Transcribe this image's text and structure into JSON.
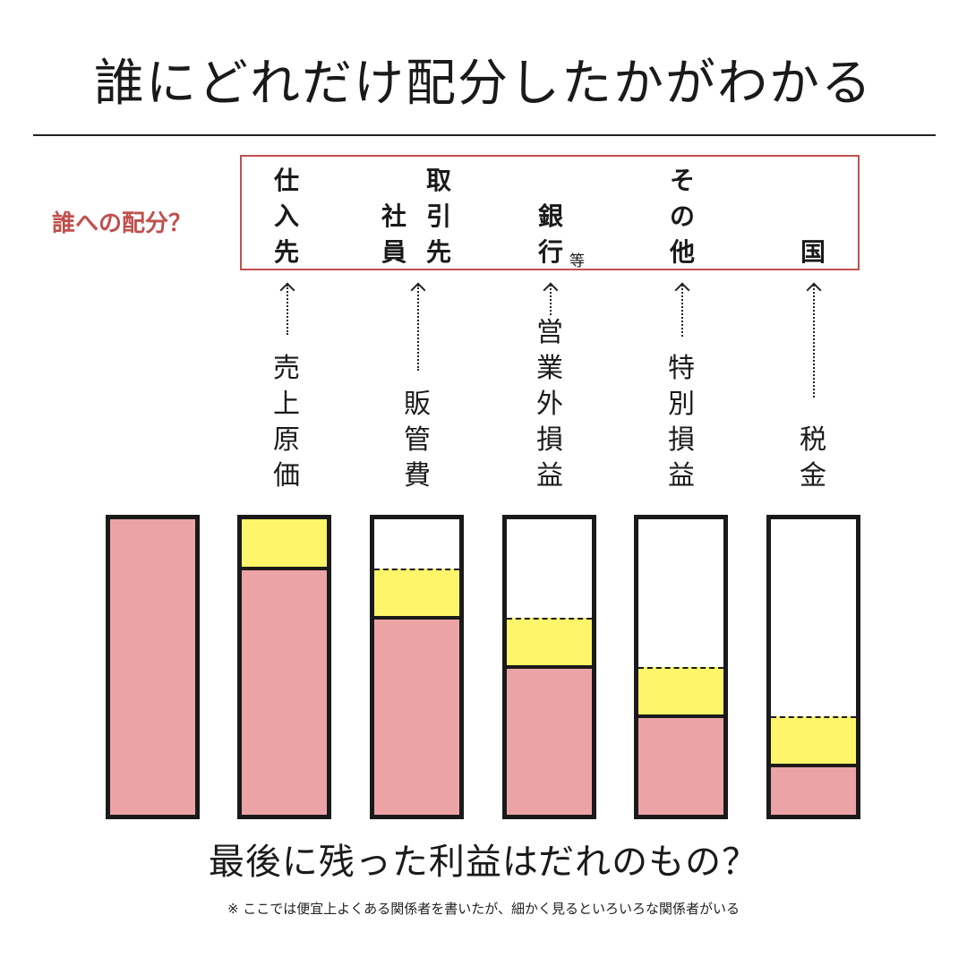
{
  "title": "誰にどれだけ配分したかがわかる",
  "allocation_label": "誰への配分？",
  "recipients": [
    {
      "lines": [
        "仕",
        "入",
        "先"
      ],
      "suffix": ""
    },
    {
      "lines": [
        "社",
        "員"
      ],
      "suffix": ""
    },
    {
      "lines": [
        "取",
        "引",
        "先"
      ],
      "suffix": ""
    },
    {
      "lines": [
        "銀",
        "行"
      ],
      "suffix": "等"
    },
    {
      "lines": [
        "そ",
        "の",
        "他"
      ],
      "suffix": ""
    },
    {
      "lines": [
        "国"
      ],
      "suffix": ""
    }
  ],
  "categories": [
    {
      "lines": [
        "売",
        "上",
        "原",
        "価"
      ]
    },
    {
      "lines": [
        "販",
        "管",
        "費"
      ]
    },
    {
      "lines": [
        "営",
        "業",
        "外",
        "損",
        "益"
      ]
    },
    {
      "lines": [
        "特",
        "別",
        "損",
        "益"
      ]
    },
    {
      "lines": [
        "税",
        "金"
      ]
    }
  ],
  "bars": [
    {
      "remaining": 1.0,
      "deducted": 0.0
    },
    {
      "remaining": 0.833,
      "deducted": 0.167
    },
    {
      "remaining": 0.667,
      "deducted": 0.167
    },
    {
      "remaining": 0.5,
      "deducted": 0.167
    },
    {
      "remaining": 0.333,
      "deducted": 0.167
    },
    {
      "remaining": 0.167,
      "deducted": 0.167
    }
  ],
  "colors": {
    "profit": "#eca3a6",
    "deduction": "#fff56a",
    "accent": "#c0504d"
  },
  "question": "最後に残った利益はだれのもの？",
  "note": "※ ここでは便宜上よくある関係者を書いたが、細かく見るといろいろな関係者がいる"
}
